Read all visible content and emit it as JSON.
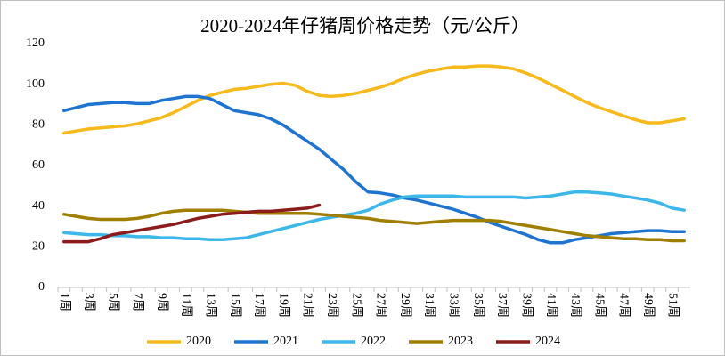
{
  "chart_data": {
    "type": "line",
    "title": "2020-2024年仔猪周价格走势（元/公斤）",
    "categories": [
      "1周",
      null,
      "3周",
      null,
      "5周",
      null,
      "7周",
      null,
      "9周",
      null,
      "11周",
      null,
      "13周",
      null,
      "15周",
      null,
      "17周",
      null,
      "19周",
      null,
      "21周",
      null,
      "23周",
      null,
      "25周",
      null,
      "27周",
      null,
      "29周",
      null,
      "31周",
      null,
      "33周",
      null,
      "35周",
      null,
      "37周",
      null,
      "39周",
      null,
      "41周",
      null,
      "43周",
      null,
      "45周",
      null,
      "47周",
      null,
      "49周",
      null,
      "51周",
      null
    ],
    "ylim": [
      0,
      120
    ],
    "yticks": [
      0,
      20,
      40,
      60,
      80,
      100,
      120
    ],
    "grid": false,
    "legend": "bottom",
    "series": [
      {
        "name": "2020",
        "color": "#F7B91B",
        "values": [
          76,
          77,
          78,
          78.5,
          79,
          79.5,
          80.5,
          82,
          83.5,
          86,
          89,
          92,
          94.5,
          96,
          97.5,
          98,
          99,
          100,
          100.5,
          99.5,
          96.5,
          94.5,
          94,
          94.5,
          95.5,
          97,
          98.5,
          100.5,
          103,
          105,
          106.5,
          107.5,
          108.5,
          108.5,
          109,
          109,
          108.5,
          107.5,
          105.5,
          103,
          100,
          97,
          94,
          91,
          88.5,
          86.5,
          84.5,
          82.5,
          81,
          81,
          82,
          83
        ]
      },
      {
        "name": "2021",
        "color": "#1E74CF",
        "values": [
          87,
          88.5,
          90,
          90.5,
          91,
          91,
          90.5,
          90.5,
          92,
          93,
          94,
          94,
          93,
          90,
          87,
          86,
          85,
          83,
          80,
          76,
          72,
          68,
          63,
          58,
          52,
          47,
          46.5,
          45.5,
          44,
          43,
          41.5,
          40,
          38.5,
          36.5,
          34.5,
          32,
          30,
          28,
          26,
          23.5,
          22,
          22,
          23.5,
          24.5,
          25.5,
          26.5,
          27,
          27.5,
          28,
          28,
          27.5,
          27.5
        ]
      },
      {
        "name": "2022",
        "color": "#3DB7EA",
        "values": [
          27,
          26.5,
          26,
          26,
          25.5,
          25.5,
          25,
          25,
          24.5,
          24.5,
          24,
          24,
          23.5,
          23.5,
          24,
          24.5,
          26,
          27.5,
          29,
          30.5,
          32,
          33.5,
          34.5,
          35.5,
          36.5,
          38,
          41,
          43,
          44.5,
          45,
          45,
          45,
          45,
          44.5,
          44.5,
          44.5,
          44.5,
          44.5,
          44,
          44.5,
          45,
          46,
          47,
          47,
          46.5,
          46,
          45,
          44,
          43,
          41.5,
          39,
          38
        ]
      },
      {
        "name": "2023",
        "color": "#A07F00",
        "values": [
          36,
          35,
          34,
          33.5,
          33.5,
          33.5,
          34,
          35,
          36.5,
          37.5,
          38,
          38,
          38,
          38,
          37.5,
          37,
          36.5,
          36.5,
          36.5,
          36.5,
          36.5,
          36,
          35.5,
          35,
          34.5,
          34,
          33,
          32.5,
          32,
          31.5,
          32,
          32.5,
          33,
          33,
          33,
          33,
          32.5,
          31.5,
          30.5,
          29.5,
          28.5,
          27.5,
          26.5,
          25.5,
          25,
          24.5,
          24,
          24,
          23.5,
          23.5,
          23,
          23
        ]
      },
      {
        "name": "2024",
        "color": "#8C1C1C",
        "values": [
          22.5,
          22.5,
          22.5,
          24,
          26,
          27,
          28,
          29,
          30,
          31,
          32.5,
          34,
          35,
          36,
          36.5,
          37,
          37.5,
          37.5,
          38,
          38.5,
          39,
          40.5,
          null,
          null,
          null,
          null,
          null,
          null,
          null,
          null,
          null,
          null,
          null,
          null,
          null,
          null,
          null,
          null,
          null,
          null,
          null,
          null,
          null,
          null,
          null,
          null,
          null,
          null,
          null,
          null,
          null,
          null
        ]
      }
    ]
  }
}
